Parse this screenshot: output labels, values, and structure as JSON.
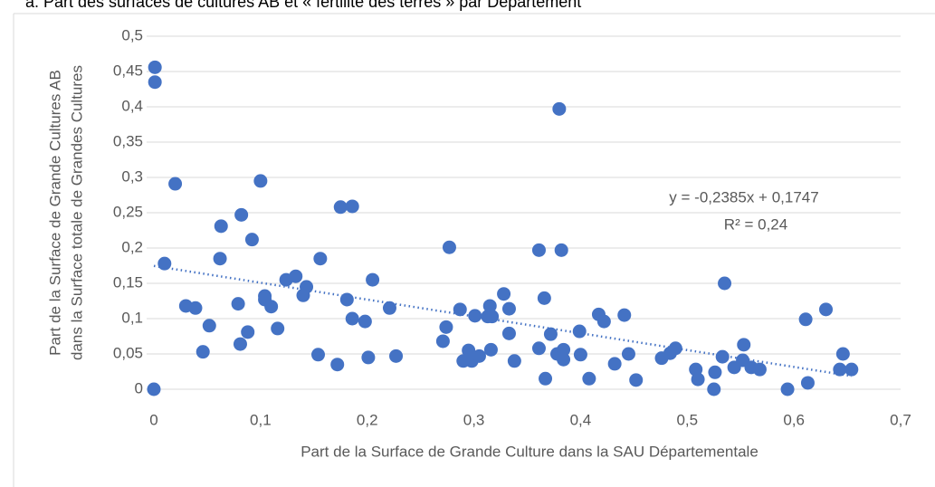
{
  "chart_data": {
    "type": "scatter",
    "title": "a. Part des surfaces de cultures AB et « fertilité des terres » par Département",
    "xlabel": "Part de la Surface de Grande Culture dans la SAU Départementale",
    "ylabel": [
      "Part de la Surface de Grande Cultures  AB",
      "dans la Surface totale de Grandes Cultures"
    ],
    "color": "#4472c4",
    "x": [
      0.001,
      0.001,
      0,
      0.01,
      0.02,
      0.03,
      0.039,
      0.046,
      0.052,
      0.063,
      0.062,
      0.079,
      0.082,
      0.081,
      0.088,
      0.092,
      0.1,
      0.104,
      0.104,
      0.11,
      0.116,
      0.124,
      0.133,
      0.14,
      0.143,
      0.154,
      0.156,
      0.172,
      0.175,
      0.181,
      0.186,
      0.186,
      0.198,
      0.201,
      0.205,
      0.221,
      0.227,
      0.271,
      0.274,
      0.277,
      0.287,
      0.29,
      0.295,
      0.298,
      0.301,
      0.305,
      0.313,
      0.315,
      0.317,
      0.316,
      0.328,
      0.333,
      0.333,
      0.338,
      0.361,
      0.361,
      0.366,
      0.367,
      0.372,
      0.378,
      0.38,
      0.382,
      0.384,
      0.384,
      0.399,
      0.4,
      0.408,
      0.417,
      0.422,
      0.432,
      0.441,
      0.445,
      0.452,
      0.476,
      0.484,
      0.489,
      0.508,
      0.51,
      0.526,
      0.525,
      0.533,
      0.535,
      0.544,
      0.552,
      0.553,
      0.56,
      0.568,
      0.594,
      0.611,
      0.613,
      0.63,
      0.643,
      0.646,
      0.654
    ],
    "values": [
      0.456,
      0.435,
      0,
      0.178,
      0.291,
      0.118,
      0.115,
      0.053,
      0.09,
      0.231,
      0.185,
      0.121,
      0.247,
      0.064,
      0.081,
      0.212,
      0.295,
      0.132,
      0.127,
      0.117,
      0.086,
      0.155,
      0.16,
      0.133,
      0.145,
      0.049,
      0.185,
      0.035,
      0.258,
      0.127,
      0.259,
      0.1,
      0.096,
      0.045,
      0.155,
      0.115,
      0.047,
      0.068,
      0.088,
      0.201,
      0.113,
      0.04,
      0.055,
      0.04,
      0.104,
      0.047,
      0.103,
      0.118,
      0.103,
      0.056,
      0.135,
      0.114,
      0.079,
      0.04,
      0.058,
      0.197,
      0.129,
      0.015,
      0.078,
      0.05,
      0.397,
      0.197,
      0.056,
      0.042,
      0.082,
      0.049,
      0.015,
      0.106,
      0.096,
      0.036,
      0.105,
      0.05,
      0.013,
      0.044,
      0.051,
      0.058,
      0.028,
      0.014,
      0.024,
      0,
      0.046,
      0.15,
      0.031,
      0.041,
      0.063,
      0.031,
      0.028,
      0,
      0.099,
      0.009,
      0.113,
      0.028,
      0.05,
      0.028
    ],
    "trendline": {
      "slope": -0.2385,
      "intercept": 0.1747,
      "style": "dotted"
    },
    "annotations": [
      "y = -0,2385x + 0,1747",
      "R² = 0,24"
    ],
    "xlim": [
      0,
      0.7
    ],
    "ylim": [
      0,
      0.5
    ],
    "xticks": [
      {
        "value": 0,
        "label": "0"
      },
      {
        "value": 0.1,
        "label": "0,1"
      },
      {
        "value": 0.2,
        "label": "0,2"
      },
      {
        "value": 0.3,
        "label": "0,3"
      },
      {
        "value": 0.4,
        "label": "0,4"
      },
      {
        "value": 0.5,
        "label": "0,5"
      },
      {
        "value": 0.6,
        "label": "0,6"
      },
      {
        "value": 0.7,
        "label": "0,7"
      }
    ],
    "yticks": [
      {
        "value": 0,
        "label": "0"
      },
      {
        "value": 0.05,
        "label": "0,05"
      },
      {
        "value": 0.1,
        "label": "0,1"
      },
      {
        "value": 0.15,
        "label": "0,15"
      },
      {
        "value": 0.2,
        "label": "0,2"
      },
      {
        "value": 0.25,
        "label": "0,25"
      },
      {
        "value": 0.3,
        "label": "0,3"
      },
      {
        "value": 0.35,
        "label": "0,35"
      },
      {
        "value": 0.4,
        "label": "0,4"
      },
      {
        "value": 0.45,
        "label": "0,45"
      },
      {
        "value": 0.5,
        "label": "0,5"
      }
    ],
    "grid": true
  }
}
